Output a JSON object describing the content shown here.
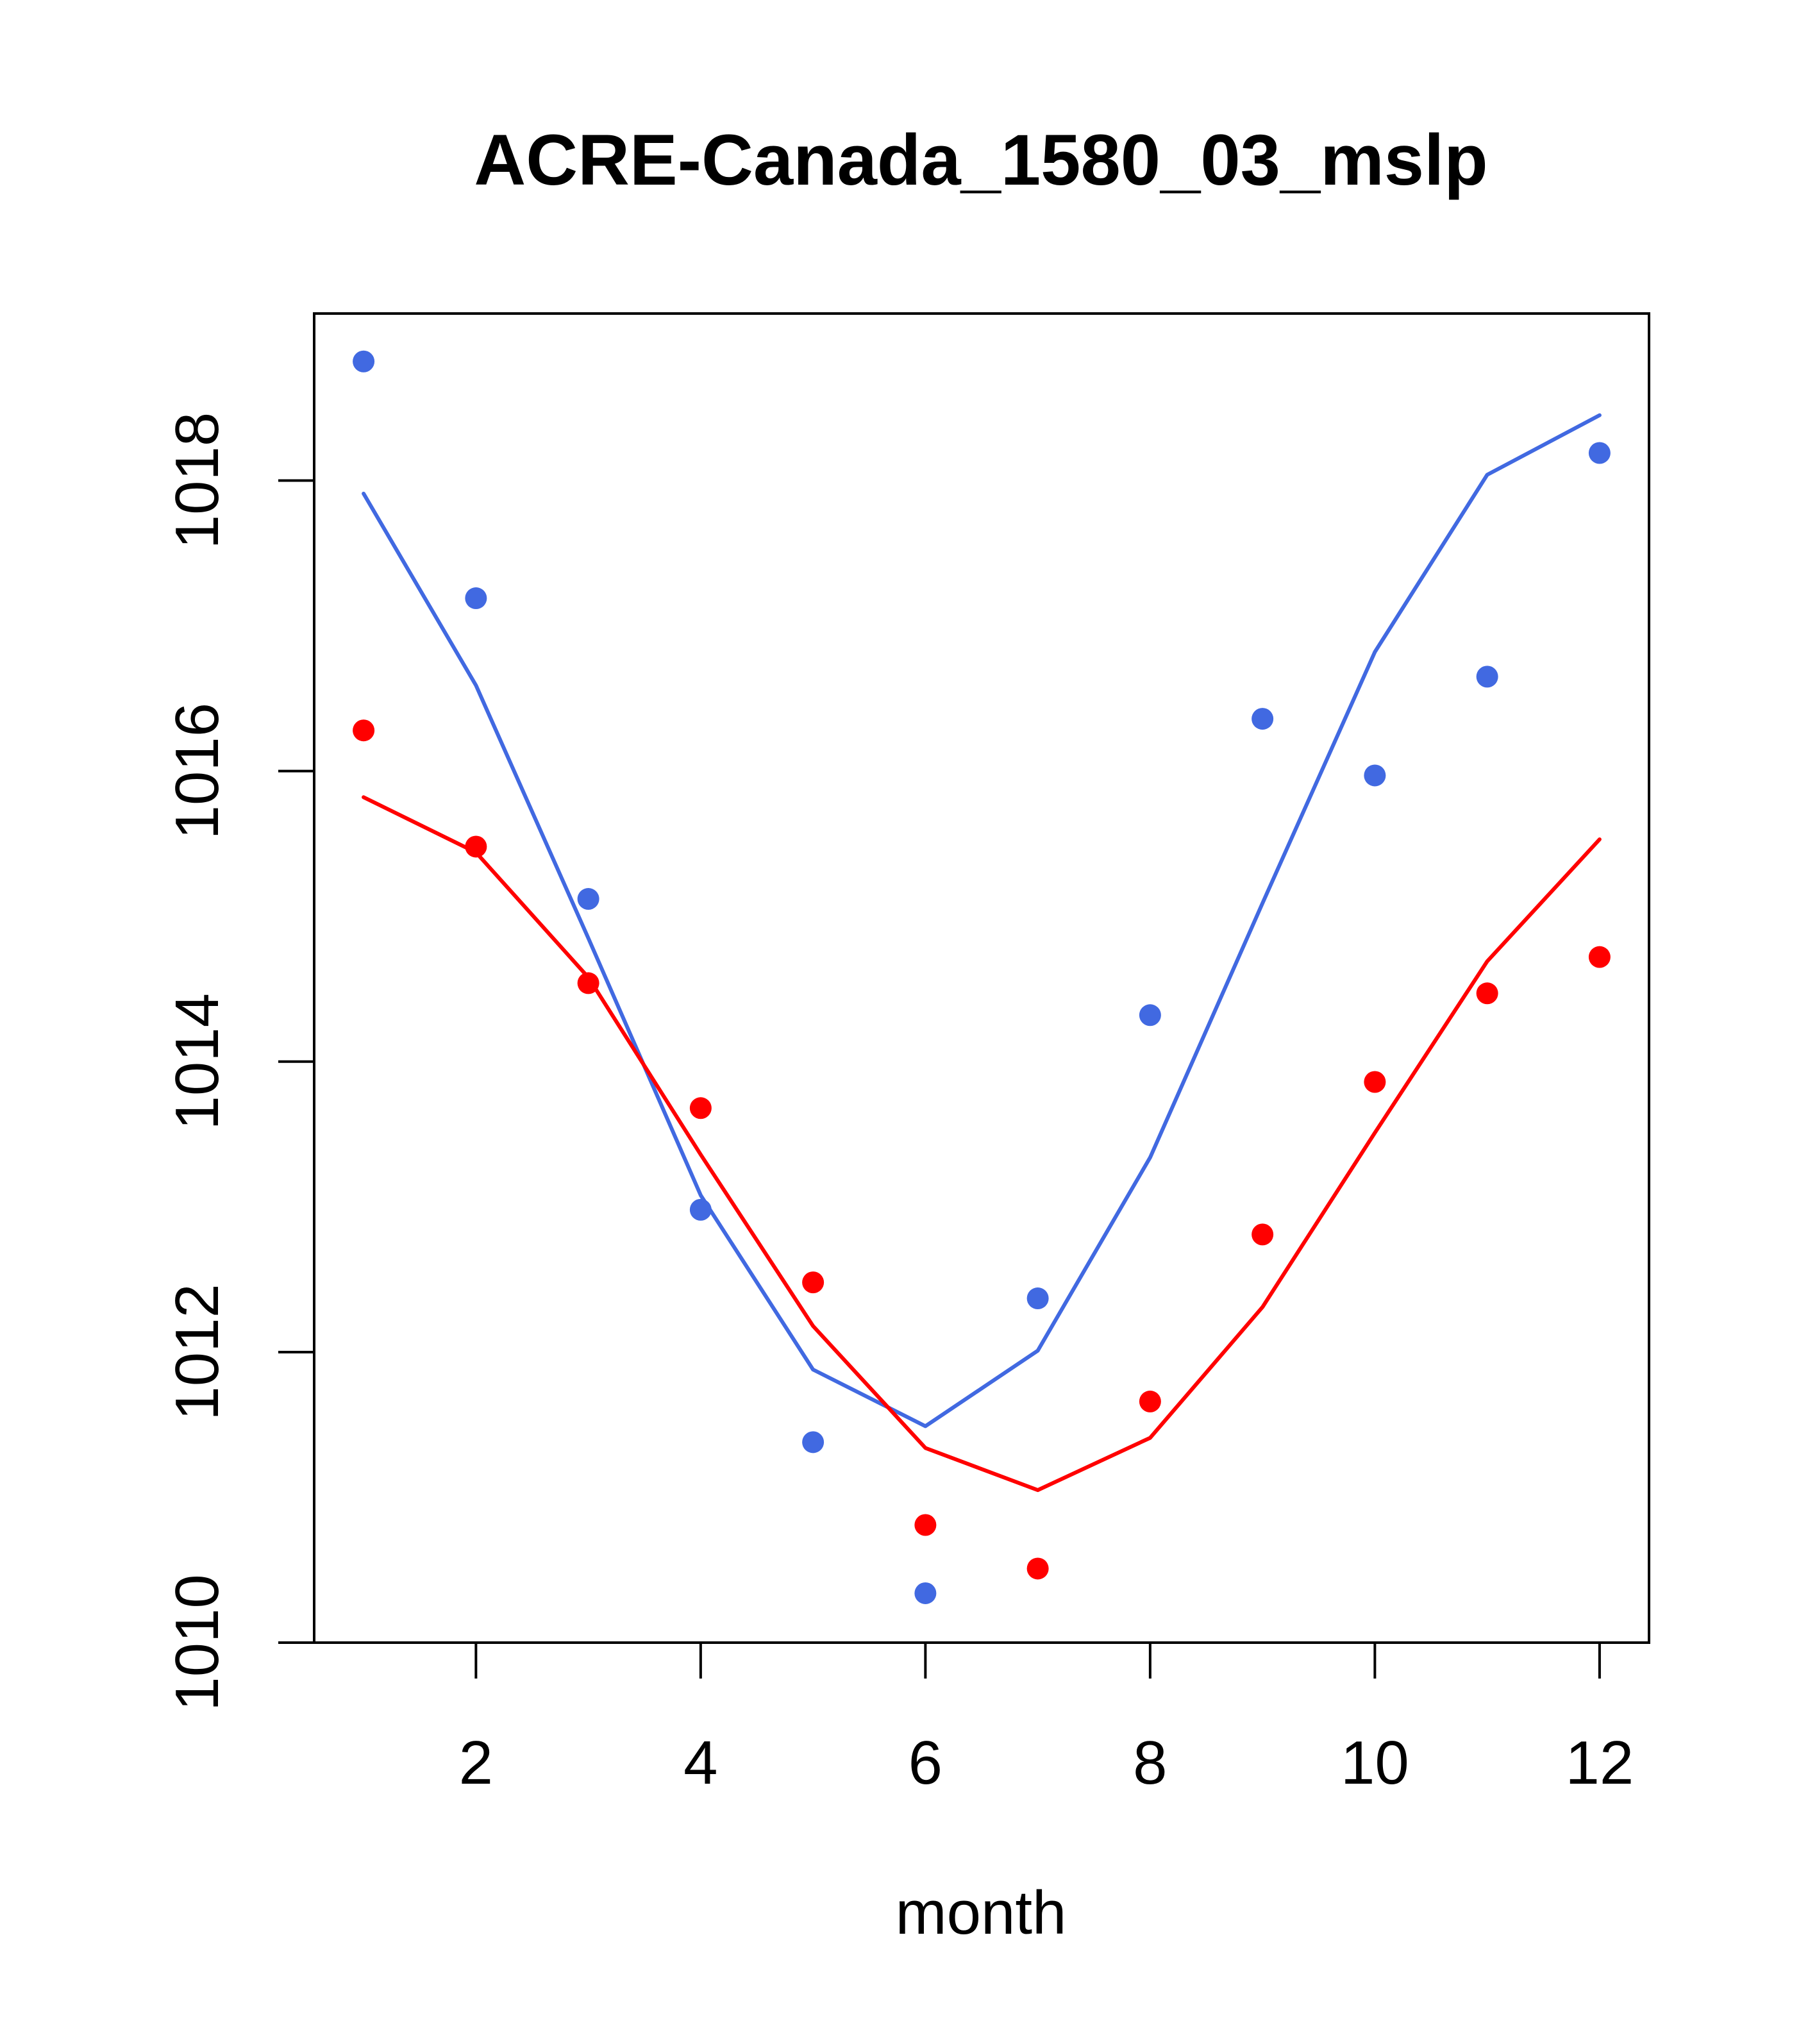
{
  "chart_data": {
    "type": "line",
    "title": "ACRE-Canada_1580_03_mslp",
    "xlabel": "month",
    "ylabel": "",
    "xlim": [
      0.56,
      12.44
    ],
    "ylim": [
      1010,
      1019.15
    ],
    "x_ticks": [
      2,
      4,
      6,
      8,
      10,
      12
    ],
    "x_tick_labels": [
      "2",
      "4",
      "6",
      "8",
      "10",
      "12"
    ],
    "y_ticks": [
      1010,
      1012,
      1014,
      1016,
      1018
    ],
    "y_tick_labels": [
      "1010",
      "1012",
      "1014",
      "1016",
      "1018"
    ],
    "grid": false,
    "x": [
      1,
      2,
      3,
      4,
      5,
      6,
      7,
      8,
      9,
      10,
      11,
      12
    ],
    "series": [
      {
        "name": "blue line",
        "kind": "line",
        "color": "#4169E1",
        "values": [
          1017.91,
          1016.59,
          1014.85,
          1013.08,
          1011.88,
          1011.49,
          1012.01,
          1013.34,
          1015.09,
          1016.82,
          1018.04,
          1018.45
        ]
      },
      {
        "name": "red line",
        "kind": "line",
        "color": "#FF0000",
        "values": [
          1015.82,
          1015.44,
          1014.58,
          1013.36,
          1012.18,
          1011.34,
          1011.05,
          1011.41,
          1012.31,
          1013.51,
          1014.69,
          1015.53
        ]
      },
      {
        "name": "blue points",
        "kind": "points",
        "color": "#4169E1",
        "values": [
          1018.82,
          1017.19,
          1015.12,
          1012.98,
          1011.38,
          1010.34,
          1012.37,
          1014.32,
          1016.36,
          1015.97,
          1016.65,
          1018.19
        ]
      },
      {
        "name": "red points",
        "kind": "points",
        "color": "#FF0000",
        "values": [
          1016.28,
          1015.48,
          1014.54,
          1013.68,
          1012.48,
          1010.81,
          1010.51,
          1011.66,
          1012.81,
          1013.86,
          1014.47,
          1014.72
        ]
      }
    ]
  }
}
